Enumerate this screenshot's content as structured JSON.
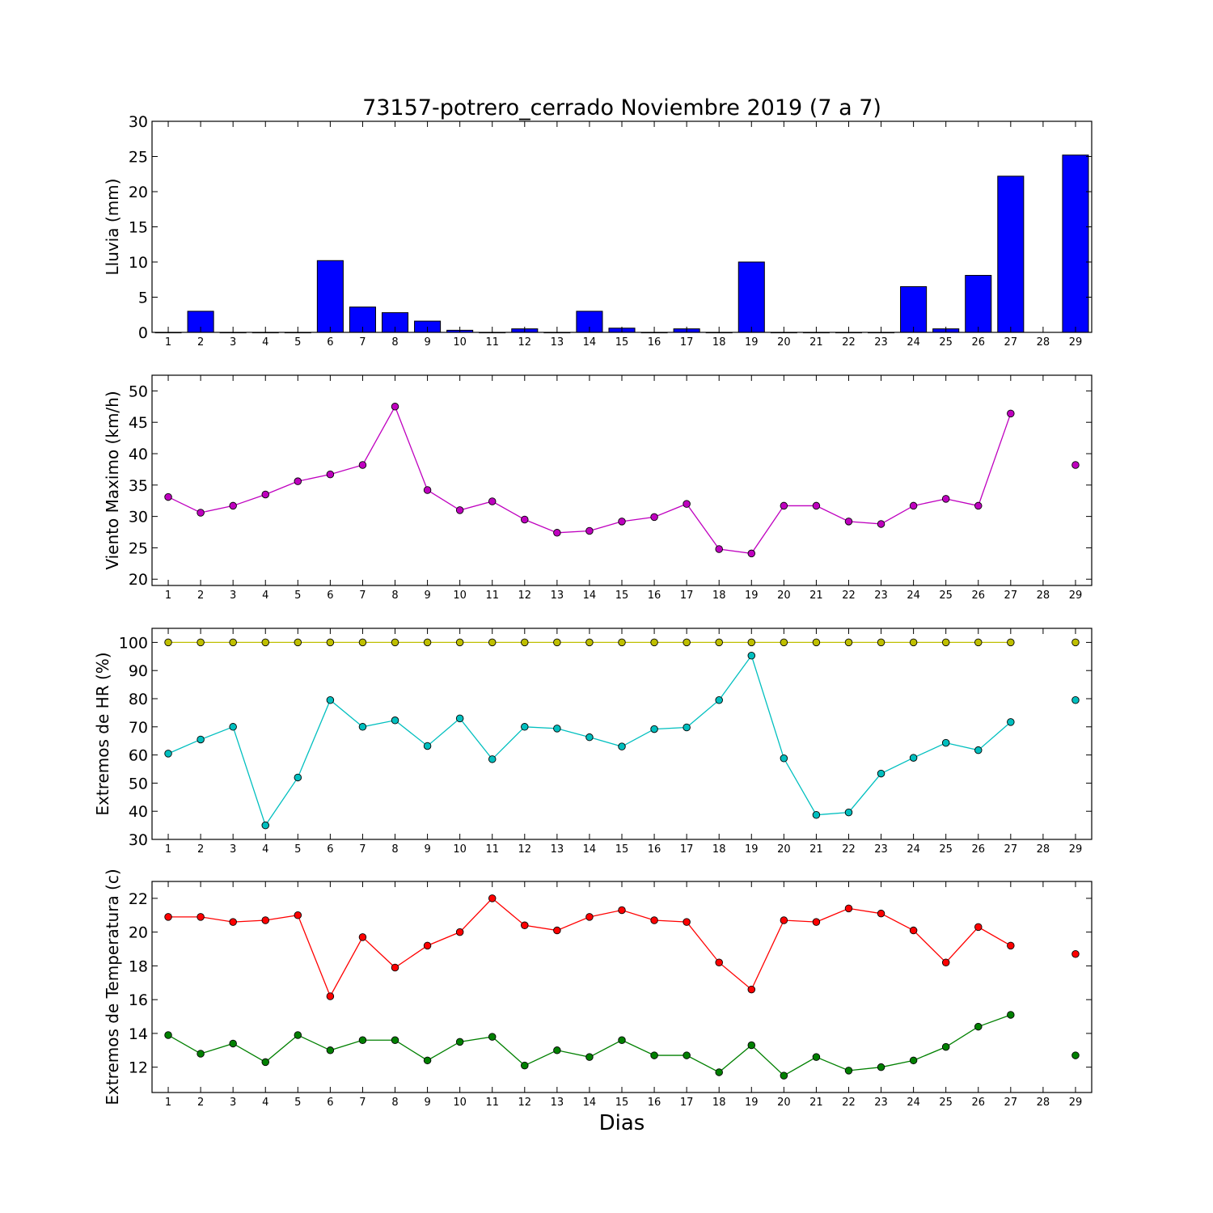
{
  "figure": {
    "title": "73157-potrero_cerrado Noviembre 2019  (7 a 7)",
    "xlabel": "Dias"
  },
  "chart_data": [
    {
      "type": "bar",
      "ylabel": "Lluvia (mm)",
      "ylim": [
        0,
        30
      ],
      "yticks": [
        0,
        5,
        10,
        15,
        20,
        25,
        30
      ],
      "xticks": [
        1,
        2,
        3,
        4,
        5,
        6,
        7,
        8,
        9,
        10,
        11,
        12,
        13,
        14,
        15,
        16,
        17,
        18,
        19,
        20,
        21,
        22,
        23,
        24,
        25,
        26,
        27,
        28,
        29
      ],
      "xlim": [
        0.5,
        29.5
      ],
      "grid": false,
      "series": [
        {
          "color": "#0000ff",
          "x": [
            1,
            2,
            3,
            4,
            5,
            6,
            7,
            8,
            9,
            10,
            11,
            12,
            13,
            14,
            15,
            16,
            17,
            18,
            19,
            20,
            21,
            22,
            23,
            24,
            25,
            26,
            27,
            28,
            29
          ],
          "values": [
            0,
            3.0,
            0,
            0,
            0,
            10.2,
            3.6,
            2.8,
            1.6,
            0.3,
            0,
            0.5,
            0,
            3.0,
            0.6,
            0,
            0.5,
            0,
            10.0,
            0,
            0,
            0,
            0,
            6.5,
            0.5,
            8.1,
            22.2,
            null,
            25.2
          ]
        }
      ]
    },
    {
      "type": "line",
      "ylabel": "Viento Maximo (km/h)",
      "ylim": [
        19,
        52.5
      ],
      "yticks": [
        20,
        25,
        30,
        35,
        40,
        45,
        50
      ],
      "xticks": [
        1,
        2,
        3,
        4,
        5,
        6,
        7,
        8,
        9,
        10,
        11,
        12,
        13,
        14,
        15,
        16,
        17,
        18,
        19,
        20,
        21,
        22,
        23,
        24,
        25,
        26,
        27,
        28,
        29
      ],
      "xlim": [
        0.5,
        29.5
      ],
      "grid": false,
      "series": [
        {
          "color": "#bf00bf",
          "x": [
            1,
            2,
            3,
            4,
            5,
            6,
            7,
            8,
            9,
            10,
            11,
            12,
            13,
            14,
            15,
            16,
            17,
            18,
            19,
            20,
            21,
            22,
            23,
            24,
            25,
            26,
            27,
            28,
            29
          ],
          "values": [
            33.1,
            30.6,
            31.7,
            33.5,
            35.6,
            36.7,
            38.2,
            47.5,
            34.2,
            31.0,
            32.4,
            29.5,
            27.4,
            27.7,
            29.2,
            29.9,
            32.0,
            24.8,
            24.1,
            31.7,
            31.7,
            29.2,
            28.8,
            31.7,
            32.8,
            31.7,
            46.4,
            null,
            38.2
          ]
        }
      ]
    },
    {
      "type": "line",
      "ylabel": "Extremos de HR (%)",
      "ylim": [
        30,
        105
      ],
      "yticks": [
        30,
        40,
        50,
        60,
        70,
        80,
        90,
        100
      ],
      "xticks": [
        1,
        2,
        3,
        4,
        5,
        6,
        7,
        8,
        9,
        10,
        11,
        12,
        13,
        14,
        15,
        16,
        17,
        18,
        19,
        20,
        21,
        22,
        23,
        24,
        25,
        26,
        27,
        28,
        29
      ],
      "xlim": [
        0.5,
        29.5
      ],
      "grid": false,
      "series": [
        {
          "color": "#bfbf00",
          "x": [
            1,
            2,
            3,
            4,
            5,
            6,
            7,
            8,
            9,
            10,
            11,
            12,
            13,
            14,
            15,
            16,
            17,
            18,
            19,
            20,
            21,
            22,
            23,
            24,
            25,
            26,
            27,
            28,
            29
          ],
          "values": [
            100,
            100,
            100,
            100,
            100,
            100,
            100,
            100,
            100,
            100,
            100,
            100,
            100,
            100,
            100,
            100,
            100,
            100,
            100,
            100,
            100,
            100,
            100,
            100,
            100,
            100,
            100,
            null,
            100
          ]
        },
        {
          "color": "#00bfbf",
          "x": [
            1,
            2,
            3,
            4,
            5,
            6,
            7,
            8,
            9,
            10,
            11,
            12,
            13,
            14,
            15,
            16,
            17,
            18,
            19,
            20,
            21,
            22,
            23,
            24,
            25,
            26,
            27,
            28,
            29
          ],
          "values": [
            60.5,
            65.5,
            70.0,
            35.0,
            52.0,
            79.5,
            70.0,
            72.3,
            63.2,
            73.0,
            58.5,
            70.0,
            69.4,
            66.3,
            63.0,
            69.2,
            69.8,
            79.5,
            95.3,
            58.8,
            38.7,
            39.6,
            53.4,
            59.0,
            64.3,
            61.7,
            71.7,
            null,
            79.5
          ]
        }
      ]
    },
    {
      "type": "line",
      "ylabel": "Extremos de Temperatura (c)",
      "ylim": [
        10.5,
        23
      ],
      "yticks": [
        12,
        14,
        16,
        18,
        20,
        22
      ],
      "xticks": [
        1,
        2,
        3,
        4,
        5,
        6,
        7,
        8,
        9,
        10,
        11,
        12,
        13,
        14,
        15,
        16,
        17,
        18,
        19,
        20,
        21,
        22,
        23,
        24,
        25,
        26,
        27,
        28,
        29
      ],
      "xlim": [
        0.5,
        29.5
      ],
      "grid": false,
      "series": [
        {
          "color": "#ff0000",
          "x": [
            1,
            2,
            3,
            4,
            5,
            6,
            7,
            8,
            9,
            10,
            11,
            12,
            13,
            14,
            15,
            16,
            17,
            18,
            19,
            20,
            21,
            22,
            23,
            24,
            25,
            26,
            27,
            28,
            29
          ],
          "values": [
            20.9,
            20.9,
            20.6,
            20.7,
            21.0,
            16.2,
            19.7,
            17.9,
            19.2,
            20.0,
            22.0,
            20.4,
            20.1,
            20.9,
            21.3,
            20.7,
            20.6,
            18.2,
            16.6,
            20.7,
            20.6,
            21.4,
            21.1,
            20.1,
            18.2,
            20.3,
            19.2,
            null,
            18.7
          ]
        },
        {
          "color": "#008000",
          "x": [
            1,
            2,
            3,
            4,
            5,
            6,
            7,
            8,
            9,
            10,
            11,
            12,
            13,
            14,
            15,
            16,
            17,
            18,
            19,
            20,
            21,
            22,
            23,
            24,
            25,
            26,
            27,
            28,
            29
          ],
          "values": [
            13.9,
            12.8,
            13.4,
            12.3,
            13.9,
            13.0,
            13.6,
            13.6,
            12.4,
            13.5,
            13.8,
            12.1,
            13.0,
            12.6,
            13.6,
            12.7,
            12.7,
            11.7,
            13.3,
            11.5,
            12.6,
            11.8,
            12.0,
            12.4,
            13.2,
            14.4,
            15.1,
            null,
            12.7
          ]
        }
      ]
    }
  ]
}
